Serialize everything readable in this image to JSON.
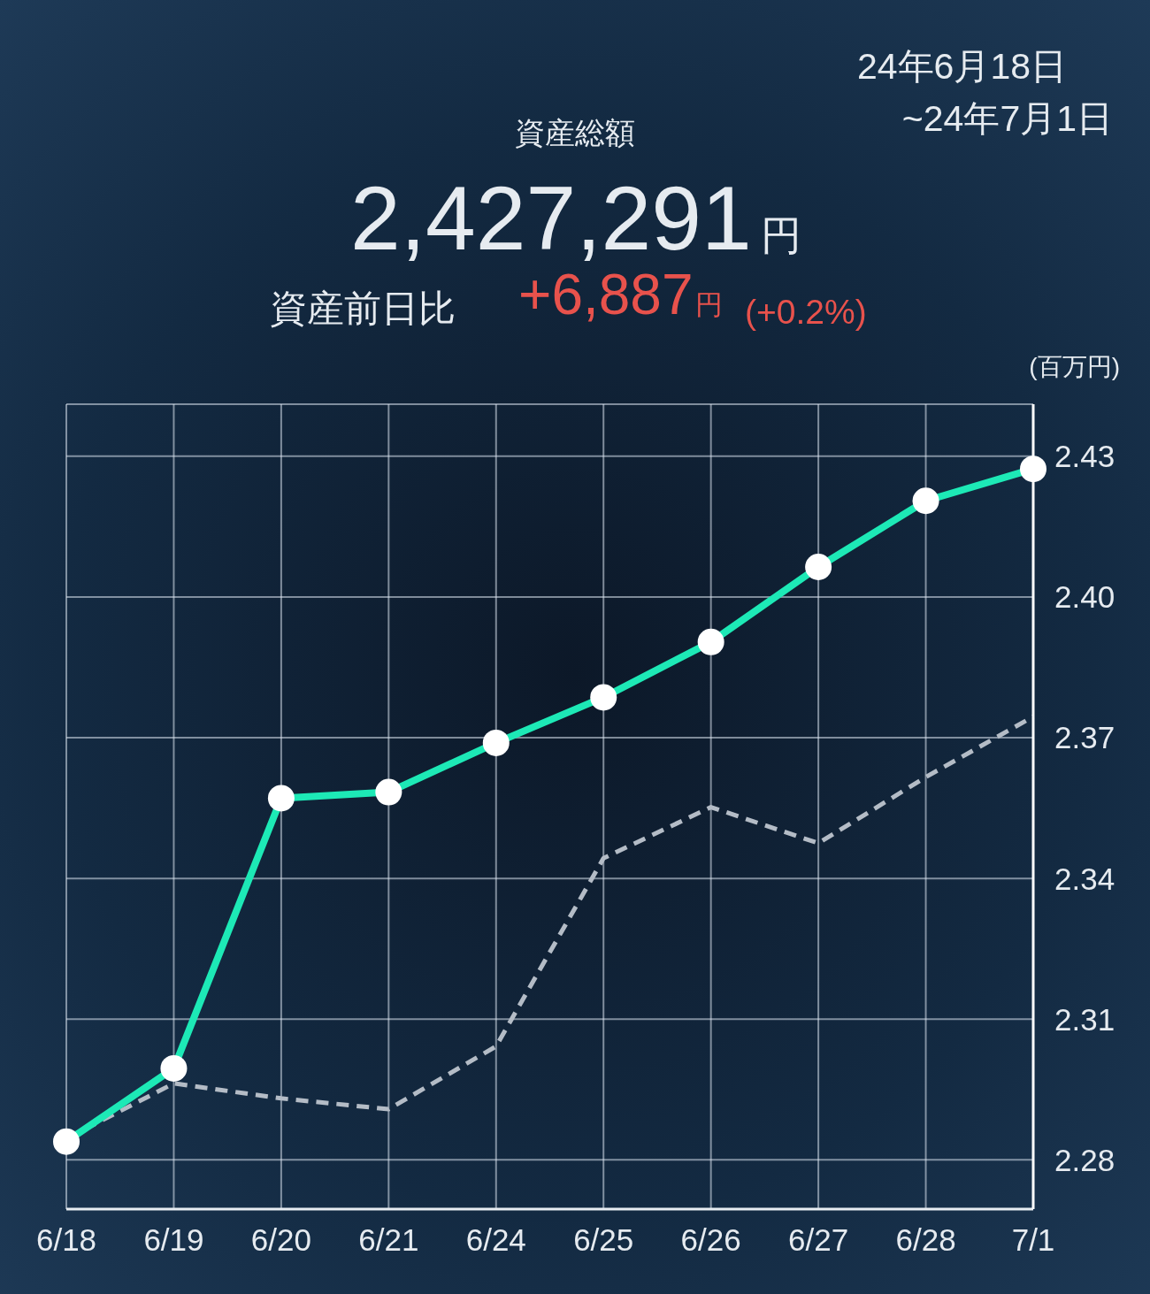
{
  "chart_data": {
    "type": "line",
    "title": "資産総額",
    "ylabel": "(百万円)",
    "annotations": [
      "24年6月18日",
      "~24年7月1日",
      "2,427,291円",
      "資産前日比",
      "+6,887円",
      "(+0.2%)"
    ],
    "categories": [
      "6/18",
      "6/19",
      "6/20",
      "6/21",
      "6/24",
      "6/25",
      "6/26",
      "6/27",
      "6/28",
      "7/1"
    ],
    "series": [
      {
        "color": "#1de9b6",
        "values": [
          2.2839,
          2.2995,
          2.3571,
          2.3584,
          2.3689,
          2.3786,
          2.3904,
          2.4064,
          2.4205,
          2.4273
        ],
        "marker": "circle",
        "line_style": "solid"
      },
      {
        "color": "#b4bcc6",
        "values": [
          2.2845,
          2.2963,
          2.2931,
          2.2908,
          2.3042,
          2.3443,
          2.3552,
          2.3475,
          2.3616,
          2.3745
        ],
        "marker": "none",
        "line_style": "dashed"
      }
    ],
    "ylim": [
      2.2695,
      2.4411
    ],
    "yticks": [
      2.28,
      2.31,
      2.34,
      2.37,
      {
        "value": 2.4,
        "label": "2.40"
      },
      2.43
    ],
    "grid": true
  }
}
